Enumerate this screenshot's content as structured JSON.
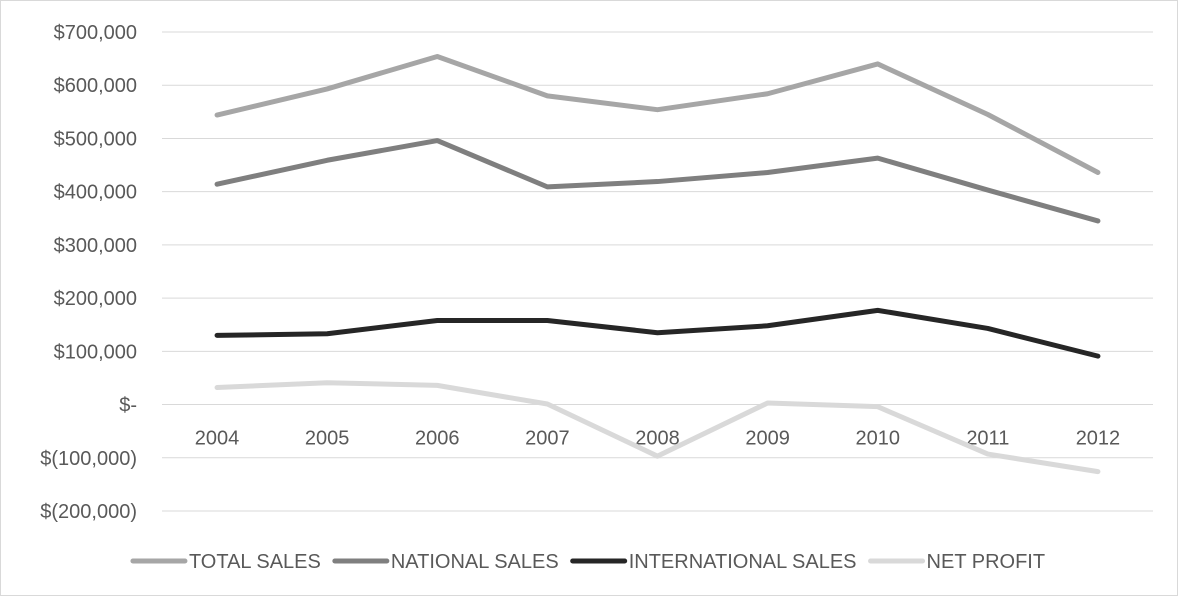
{
  "chart_data": {
    "type": "line",
    "title": "",
    "xlabel": "",
    "ylabel": "",
    "categories": [
      "2004",
      "2005",
      "2006",
      "2007",
      "2008",
      "2009",
      "2010",
      "2011",
      "2012"
    ],
    "y_ticks": [
      {
        "value": 700000,
        "label": "$700,000"
      },
      {
        "value": 600000,
        "label": "$600,000"
      },
      {
        "value": 500000,
        "label": "$500,000"
      },
      {
        "value": 400000,
        "label": "$400,000"
      },
      {
        "value": 300000,
        "label": "$300,000"
      },
      {
        "value": 200000,
        "label": "$200,000"
      },
      {
        "value": 100000,
        "label": "$100,000"
      },
      {
        "value": 0,
        "label": "$-"
      },
      {
        "value": -100000,
        "label": "$(100,000)"
      },
      {
        "value": -200000,
        "label": "$(200,000)"
      }
    ],
    "ylim": [
      -200000,
      700000
    ],
    "grid": true,
    "legend_position": "bottom",
    "series": [
      {
        "name": "TOTAL SALES",
        "color": "#a6a6a6",
        "values": [
          544000,
          593000,
          654000,
          580000,
          554000,
          584000,
          640000,
          545000,
          436000
        ]
      },
      {
        "name": "NATIONAL SALES",
        "color": "#7f7f7f",
        "values": [
          414000,
          459000,
          496000,
          409000,
          419000,
          436000,
          463000,
          403000,
          345000
        ]
      },
      {
        "name": "INTERNATIONAL SALES",
        "color": "#262626",
        "values": [
          130000,
          133000,
          158000,
          158000,
          135000,
          148000,
          177000,
          143000,
          91000
        ]
      },
      {
        "name": "NET PROFIT",
        "color": "#d9d9d9",
        "values": [
          32000,
          41000,
          36000,
          1000,
          -97000,
          3000,
          -4000,
          -93000,
          -126000
        ]
      }
    ]
  }
}
